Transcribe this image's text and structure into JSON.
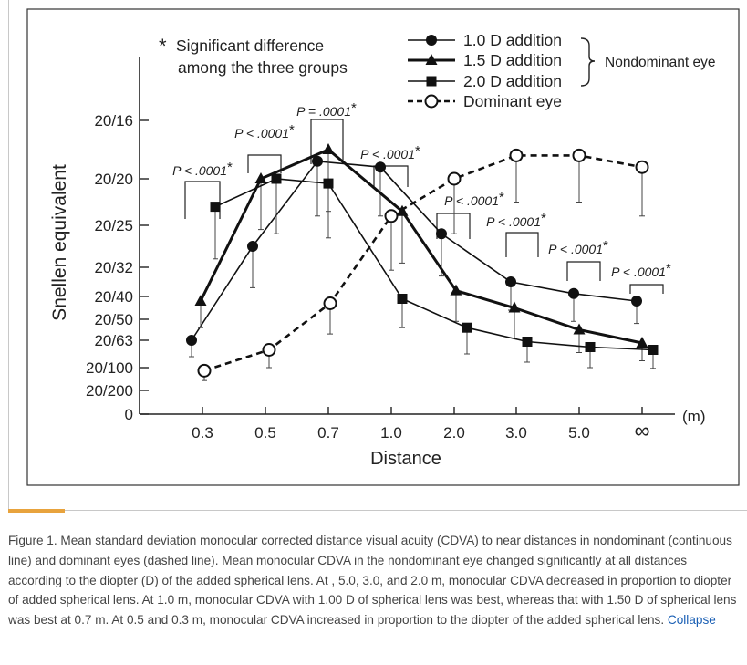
{
  "chart_data": {
    "type": "line",
    "ylabel": "Snellen equivalent",
    "xlabel": "Distance",
    "x_unit": "(m)",
    "categories": [
      "0.3",
      "0.5",
      "0.7",
      "1.0",
      "2.0",
      "3.0",
      "5.0",
      "∞"
    ],
    "y_ticks": [
      "20/16",
      "20/20",
      "20/25",
      "20/32",
      "20/40",
      "20/50",
      "20/63",
      "20/100",
      "20/200",
      "0"
    ],
    "y_tick_values": [
      0.1,
      0.0,
      -0.1,
      -0.2,
      -0.3,
      -0.4,
      -0.5,
      -0.7,
      -1.0,
      -1.2
    ],
    "ylim": [
      -1.2,
      0.15
    ],
    "note_star": "*",
    "note_line1": "Significant difference",
    "note_line2": "among the three groups",
    "group_label": "Nondominant eye",
    "series": [
      {
        "name": "1.0 D addition",
        "marker": "circle",
        "line": "solid",
        "values": [
          -0.5,
          -0.15,
          0.03,
          0.02,
          -0.12,
          -0.25,
          -0.29,
          -0.32
        ],
        "sd": [
          0.12,
          0.12,
          0.11,
          0.1,
          0.11,
          0.11,
          0.12,
          0.1
        ]
      },
      {
        "name": "1.5 D addition",
        "marker": "triangle",
        "line": "solid-bold",
        "values": [
          -0.32,
          0.0,
          0.05,
          -0.07,
          -0.28,
          -0.35,
          -0.45,
          -0.52
        ],
        "sd": [
          0.12,
          0.11,
          0.12,
          0.12,
          0.13,
          0.14,
          0.14,
          0.13
        ]
      },
      {
        "name": "2.0 D addition",
        "marker": "square",
        "line": "solid",
        "values": [
          -0.06,
          0.0,
          -0.01,
          -0.31,
          -0.44,
          -0.51,
          -0.55,
          -0.57
        ],
        "sd": [
          0.12,
          0.12,
          0.12,
          0.13,
          0.16,
          0.15,
          0.15,
          0.14
        ]
      },
      {
        "name": "Dominant eye",
        "marker": "open-circle",
        "line": "dashed",
        "values": [
          -0.74,
          -0.57,
          -0.33,
          -0.08,
          0.0,
          0.04,
          0.04,
          0.02
        ],
        "sd": [
          0.13,
          0.13,
          0.14,
          0.13,
          0.12,
          0.09,
          0.09,
          0.1
        ]
      }
    ],
    "annotations": [
      {
        "text": "P < .0001",
        "star": "*",
        "category": "0.3"
      },
      {
        "text": "P < .0001",
        "star": "*",
        "category": "0.5"
      },
      {
        "text": "P = .0001",
        "star": "*",
        "category": "0.7"
      },
      {
        "text": "P < .0001",
        "star": "*",
        "category": "1.0"
      },
      {
        "text": "P < .0001",
        "star": "*",
        "category": "2.0"
      },
      {
        "text": "P < .0001",
        "star": "*",
        "category": "3.0"
      },
      {
        "text": "P < .0001",
        "star": "*",
        "category": "5.0"
      },
      {
        "text": "P < .0001",
        "star": "*",
        "category": "∞"
      }
    ]
  },
  "caption": {
    "text": "Figure 1. Mean standard deviation monocular corrected distance visual acuity (CDVA) to near distances in nondominant (continuous line) and dominant eyes (dashed line). Mean monocular CDVA in the nondominant eye changed significantly at all distances according to the diopter (D) of the added spherical lens. At , 5.0, 3.0, and 2.0 m, monocular CDVA decreased in proportion to diopter of added spherical lens. At 1.0 m, monocular CDVA with 1.00 D of spherical lens was best, whereas that with 1.50 D of spherical lens was best at 0.7 m. At 0.5 and 0.3 m, monocular CDVA increased in proportion to the diopter of the added spherical lens.",
    "collapse_label": "Collapse"
  }
}
